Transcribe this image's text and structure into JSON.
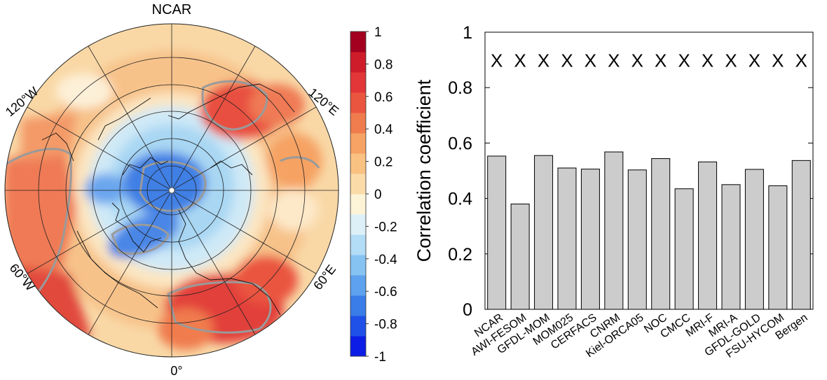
{
  "map_panel": {
    "title": "NCAR",
    "lon_labels": {
      "w120": "120°W",
      "e120": "120°E",
      "w60": "60°W",
      "e60": "60°E",
      "zero": "0°"
    }
  },
  "colorbar": {
    "tick_labels": [
      "1",
      "0.8",
      "0.6",
      "0.4",
      "0.2",
      "0",
      "-0.2",
      "-0.4",
      "-0.6",
      "-0.8",
      "-1"
    ],
    "colors": [
      "#0c1ee6",
      "#1f50e8",
      "#3a7ce8",
      "#5ea1ee",
      "#86c3f3",
      "#b3dcf7",
      "#ddf0f8",
      "#fdf3d7",
      "#fbdca9",
      "#f9c283",
      "#f6a264",
      "#f07c4e",
      "#ea5540",
      "#e23638",
      "#ce1c2a",
      "#a3001f"
    ]
  },
  "chart_data": {
    "type": "bar",
    "categories": [
      "NCAR",
      "AWI-FESOM",
      "GFDL-MOM",
      "MOM025",
      "CERFACS",
      "CNRM",
      "Kiel-ORCA05",
      "NOC",
      "CMCC",
      "MRI-F",
      "MRI-A",
      "GFDL-GOLD",
      "FSU-HYCOM",
      "Bergen"
    ],
    "values": [
      0.553,
      0.38,
      0.555,
      0.51,
      0.506,
      0.568,
      0.503,
      0.544,
      0.435,
      0.532,
      0.45,
      0.505,
      0.446,
      0.537
    ],
    "markers": [
      "X",
      "X",
      "X",
      "X",
      "X",
      "X",
      "X",
      "X",
      "X",
      "X",
      "X",
      "X",
      "X",
      "X"
    ],
    "marker_value": 0.9,
    "ylabel": "Correlation coefficient",
    "ylim": [
      0,
      1
    ],
    "yticks": [
      0,
      0.2,
      0.4,
      0.6,
      0.8,
      1
    ],
    "ytick_labels": [
      "0",
      "0.2",
      "0.4",
      "0.6",
      "0.8",
      "1"
    ],
    "bar_color": "#cccccc",
    "grid": false
  }
}
